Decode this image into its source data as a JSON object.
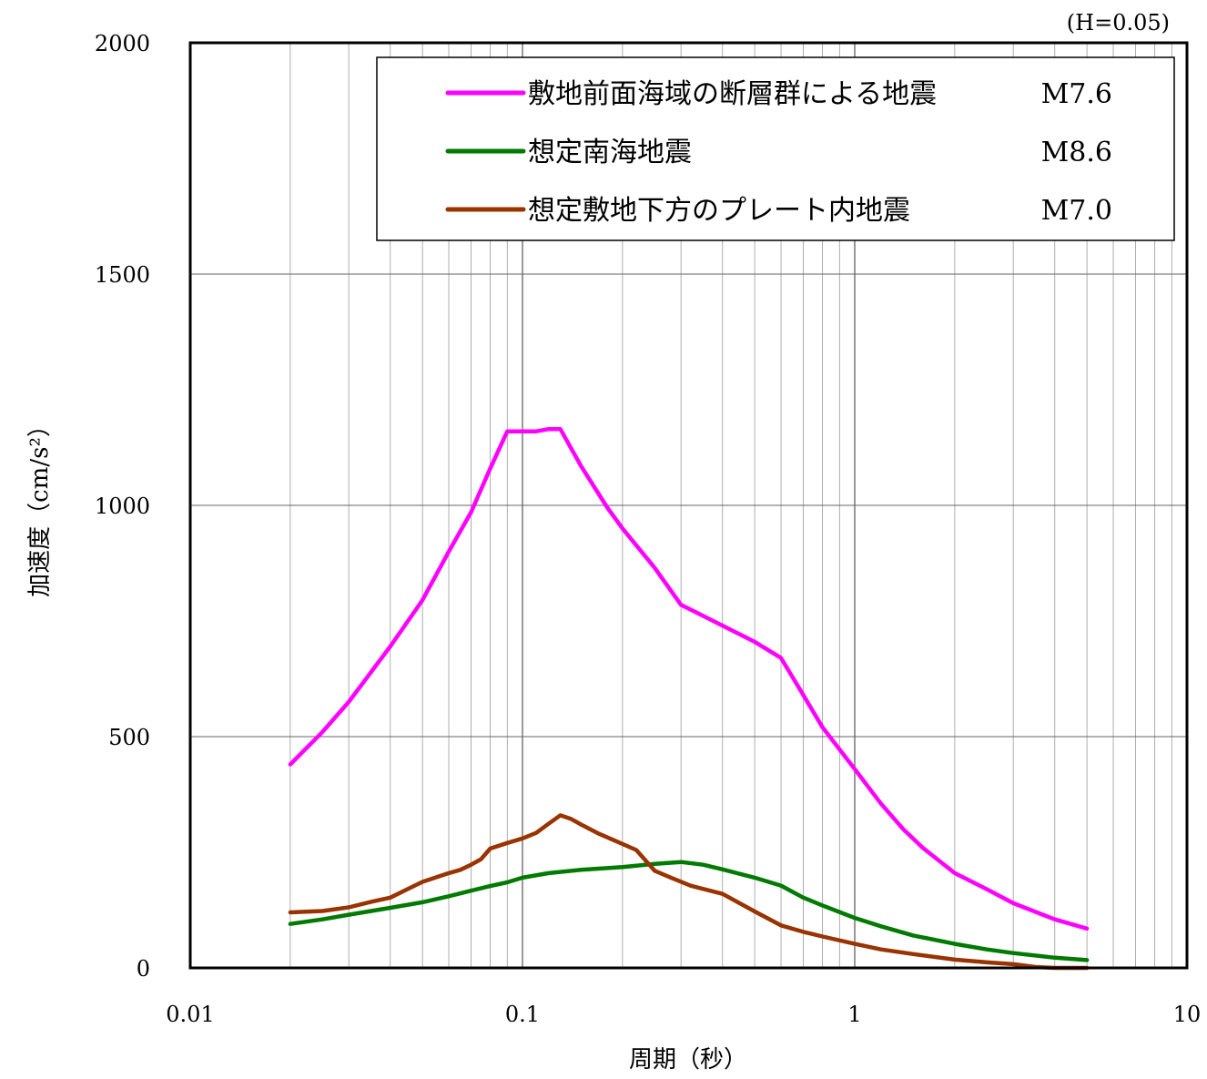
{
  "chart_data": {
    "type": "line",
    "note": "(H=0.05)",
    "xlabel": "周期（秒）",
    "ylabel": "加速度（cm/s²）",
    "x_scale": "log",
    "xlim": [
      0.01,
      10
    ],
    "ylim": [
      0,
      2000
    ],
    "grid": true,
    "legend_position": "top-right",
    "x_ticks": [
      {
        "value": 0.01,
        "label": "0.01"
      },
      {
        "value": 0.1,
        "label": "0.1"
      },
      {
        "value": 1,
        "label": "1"
      },
      {
        "value": 10,
        "label": "10"
      }
    ],
    "y_ticks": [
      {
        "value": 0,
        "label": "0"
      },
      {
        "value": 500,
        "label": "500"
      },
      {
        "value": 1000,
        "label": "1000"
      },
      {
        "value": 1500,
        "label": "1500"
      },
      {
        "value": 2000,
        "label": "2000"
      }
    ],
    "series": [
      {
        "name": "敷地前面海域の断層群による地震",
        "magnitude": "M7.6",
        "color": "#ff00ff",
        "x": [
          0.02,
          0.025,
          0.03,
          0.04,
          0.05,
          0.06,
          0.07,
          0.08,
          0.09,
          0.1,
          0.11,
          0.12,
          0.13,
          0.15,
          0.18,
          0.2,
          0.25,
          0.3,
          0.4,
          0.5,
          0.6,
          0.7,
          0.8,
          1.0,
          1.2,
          1.4,
          1.6,
          2.0,
          2.5,
          3.0,
          4.0,
          5.0
        ],
        "y": [
          440,
          510,
          575,
          695,
          795,
          900,
          985,
          1080,
          1160,
          1160,
          1160,
          1165,
          1165,
          1085,
          995,
          950,
          865,
          785,
          740,
          705,
          670,
          590,
          520,
          430,
          355,
          300,
          260,
          205,
          170,
          140,
          105,
          85
        ]
      },
      {
        "name": "想定南海地震",
        "magnitude": "M8.6",
        "color": "#007a00",
        "x": [
          0.02,
          0.025,
          0.03,
          0.04,
          0.05,
          0.06,
          0.07,
          0.08,
          0.09,
          0.1,
          0.12,
          0.15,
          0.2,
          0.25,
          0.3,
          0.35,
          0.4,
          0.5,
          0.6,
          0.7,
          0.8,
          1.0,
          1.2,
          1.5,
          2.0,
          2.5,
          3.0,
          4.0,
          5.0
        ],
        "y": [
          95,
          105,
          115,
          130,
          142,
          155,
          167,
          177,
          185,
          195,
          205,
          212,
          218,
          225,
          229,
          223,
          213,
          195,
          178,
          152,
          135,
          108,
          90,
          70,
          52,
          40,
          32,
          22,
          17
        ]
      },
      {
        "name": "想定敷地下方のプレート内地震",
        "magnitude": "M7.0",
        "color": "#993300",
        "x": [
          0.02,
          0.025,
          0.03,
          0.035,
          0.04,
          0.045,
          0.05,
          0.06,
          0.065,
          0.07,
          0.075,
          0.08,
          0.09,
          0.1,
          0.11,
          0.12,
          0.13,
          0.14,
          0.15,
          0.17,
          0.19,
          0.22,
          0.25,
          0.28,
          0.32,
          0.4,
          0.5,
          0.6,
          0.7,
          0.8,
          1.0,
          1.2,
          1.5,
          2.0,
          2.5,
          3.0,
          3.5,
          4.0,
          5.0
        ],
        "y": [
          120,
          123,
          131,
          143,
          152,
          170,
          186,
          205,
          212,
          223,
          235,
          258,
          270,
          280,
          292,
          312,
          330,
          322,
          310,
          290,
          275,
          255,
          210,
          195,
          178,
          160,
          122,
          92,
          78,
          68,
          52,
          40,
          30,
          18,
          12,
          8,
          2,
          0,
          0
        ]
      }
    ]
  }
}
